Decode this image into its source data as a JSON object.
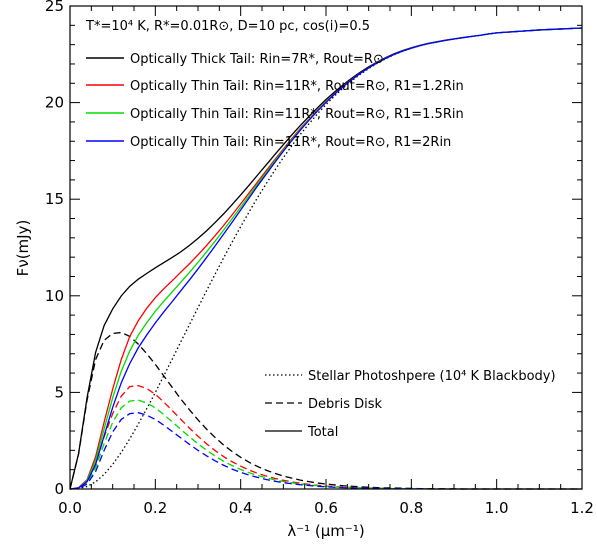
{
  "chart_data": {
    "type": "line",
    "xlabel": "λ⁻¹ (μm⁻¹)",
    "ylabel": "Fν(mJy)",
    "xlim": [
      0.0,
      1.2
    ],
    "ylim": [
      0,
      25
    ],
    "x_ticks": [
      "0.0",
      "0.2",
      "0.4",
      "0.6",
      "0.8",
      "1.0",
      "1.2"
    ],
    "y_ticks": [
      "0",
      "5",
      "10",
      "15",
      "20",
      "25"
    ],
    "params_text": "T*=10⁴ K, R*=0.01R⊙, D=10 pc, cos(i)=0.5",
    "legend_top": [
      {
        "label": "Optically Thick Tail: Rin=7R*, Rout=R⊙",
        "color": "#000000"
      },
      {
        "label": "Optically Thin Tail: Rin=11R*, Rout=R⊙, R1=1.2Rin",
        "color": "#ff0000"
      },
      {
        "label": "Optically Thin Tail: Rin=11R*, Rout=R⊙, R1=1.5Rin",
        "color": "#00dd00"
      },
      {
        "label": "Optically Thin Tail: Rin=11R*, Rout=R⊙, R1=2Rin",
        "color": "#0000ff"
      }
    ],
    "legend_styles": [
      {
        "label": "Stellar Photoshpere (10⁴ K Blackbody)",
        "dash": "dotted"
      },
      {
        "label": "Debris Disk",
        "dash": "dashed"
      },
      {
        "label": "Total",
        "dash": "solid"
      }
    ],
    "x": [
      0.0,
      0.02,
      0.04,
      0.06,
      0.08,
      0.1,
      0.12,
      0.14,
      0.16,
      0.18,
      0.2,
      0.22,
      0.24,
      0.26,
      0.28,
      0.3,
      0.32,
      0.34,
      0.36,
      0.38,
      0.4,
      0.42,
      0.44,
      0.46,
      0.48,
      0.5,
      0.52,
      0.54,
      0.56,
      0.58,
      0.6,
      0.62,
      0.64,
      0.66,
      0.68,
      0.7,
      0.72,
      0.74,
      0.76,
      0.78,
      0.8,
      0.82,
      0.84,
      0.86,
      0.88,
      0.9,
      0.92,
      0.94,
      0.96,
      0.98,
      1.0,
      1.02,
      1.04,
      1.06,
      1.08,
      1.1,
      1.12,
      1.14,
      1.16,
      1.18,
      1.2
    ],
    "series": [
      {
        "color": "#000000",
        "dash": "dotted",
        "values": [
          0.0,
          0.02,
          0.13,
          0.37,
          0.76,
          1.27,
          1.89,
          2.59,
          3.36,
          4.16,
          5.0,
          5.87,
          6.74,
          7.63,
          8.51,
          9.39,
          10.26,
          11.12,
          11.96,
          12.78,
          13.58,
          14.35,
          15.1,
          15.81,
          16.5,
          17.15,
          17.77,
          18.36,
          18.9,
          19.42,
          19.9,
          20.34,
          20.75,
          21.12,
          21.46,
          21.76,
          22.03,
          22.27,
          22.48,
          22.66,
          22.81,
          22.94,
          23.05,
          23.14,
          23.22,
          23.29,
          23.36,
          23.42,
          23.48,
          23.55,
          23.61,
          23.64,
          23.67,
          23.7,
          23.73,
          23.76,
          23.78,
          23.8,
          23.82,
          23.84,
          23.86
        ]
      },
      {
        "color": "#000000",
        "dash": "dashed",
        "values": [
          0.0,
          1.8,
          4.6,
          6.7,
          7.7,
          8.05,
          8.1,
          7.9,
          7.5,
          7.0,
          6.45,
          5.85,
          5.25,
          4.65,
          4.1,
          3.58,
          3.1,
          2.67,
          2.28,
          1.94,
          1.64,
          1.38,
          1.16,
          0.97,
          0.81,
          0.67,
          0.56,
          0.46,
          0.38,
          0.31,
          0.26,
          0.21,
          0.17,
          0.14,
          0.11,
          0.09,
          0.07,
          0.06,
          0.05,
          0.04,
          0.03,
          0.02,
          0.02,
          0.01,
          0.01,
          0.01,
          0.0,
          0.0,
          0.0,
          0.0,
          0.0,
          0.0,
          0.0,
          0.0,
          0.0,
          0.0,
          0.0,
          0.0,
          0.0,
          0.0,
          0.0
        ]
      },
      {
        "color": "#ff0000",
        "dash": "dashed",
        "values": [
          0.0,
          0.05,
          0.35,
          1.3,
          2.7,
          3.9,
          4.8,
          5.3,
          5.35,
          5.2,
          4.9,
          4.5,
          4.05,
          3.6,
          3.15,
          2.73,
          2.34,
          1.99,
          1.68,
          1.41,
          1.18,
          0.98,
          0.81,
          0.67,
          0.55,
          0.45,
          0.37,
          0.3,
          0.24,
          0.19,
          0.15,
          0.12,
          0.1,
          0.08,
          0.06,
          0.05,
          0.04,
          0.03,
          0.02,
          0.02,
          0.01,
          0.01,
          0.01,
          0.0,
          0.0,
          0.0,
          0.0,
          0.0,
          0.0,
          0.0,
          0.0,
          0.0,
          0.0,
          0.0,
          0.0,
          0.0,
          0.0,
          0.0,
          0.0,
          0.0,
          0.0
        ]
      },
      {
        "color": "#00dd00",
        "dash": "dashed",
        "values": [
          0.0,
          0.04,
          0.3,
          1.1,
          2.35,
          3.45,
          4.2,
          4.55,
          4.6,
          4.45,
          4.2,
          3.85,
          3.47,
          3.08,
          2.7,
          2.34,
          2.01,
          1.71,
          1.44,
          1.21,
          1.01,
          0.84,
          0.7,
          0.58,
          0.47,
          0.39,
          0.32,
          0.26,
          0.21,
          0.17,
          0.13,
          0.1,
          0.08,
          0.07,
          0.05,
          0.04,
          0.03,
          0.03,
          0.02,
          0.01,
          0.01,
          0.01,
          0.01,
          0.0,
          0.0,
          0.0,
          0.0,
          0.0,
          0.0,
          0.0,
          0.0,
          0.0,
          0.0,
          0.0,
          0.0,
          0.0,
          0.0,
          0.0,
          0.0,
          0.0,
          0.0
        ]
      },
      {
        "color": "#0000ff",
        "dash": "dashed",
        "values": [
          0.0,
          0.03,
          0.25,
          0.9,
          2.0,
          2.95,
          3.6,
          3.9,
          3.95,
          3.82,
          3.6,
          3.3,
          2.97,
          2.64,
          2.31,
          2.0,
          1.72,
          1.46,
          1.23,
          1.03,
          0.86,
          0.72,
          0.6,
          0.49,
          0.4,
          0.33,
          0.27,
          0.22,
          0.18,
          0.14,
          0.11,
          0.09,
          0.07,
          0.06,
          0.05,
          0.04,
          0.03,
          0.02,
          0.02,
          0.01,
          0.01,
          0.01,
          0.0,
          0.0,
          0.0,
          0.0,
          0.0,
          0.0,
          0.0,
          0.0,
          0.0,
          0.0,
          0.0,
          0.0,
          0.0,
          0.0,
          0.0,
          0.0,
          0.0,
          0.0,
          0.0
        ]
      },
      {
        "color": "#000000",
        "dash": "solid",
        "values": [
          0.0,
          1.82,
          4.73,
          7.07,
          8.46,
          9.32,
          9.99,
          10.49,
          10.86,
          11.16,
          11.45,
          11.72,
          11.99,
          12.28,
          12.61,
          12.97,
          13.36,
          13.79,
          14.24,
          14.72,
          15.22,
          15.73,
          16.26,
          16.78,
          17.31,
          17.82,
          18.33,
          18.82,
          19.28,
          19.73,
          20.16,
          20.55,
          20.92,
          21.26,
          21.57,
          21.85,
          22.1,
          22.33,
          22.53,
          22.7,
          22.84,
          22.96,
          23.07,
          23.15,
          23.23,
          23.3,
          23.36,
          23.42,
          23.48,
          23.55,
          23.61,
          23.64,
          23.67,
          23.7,
          23.73,
          23.76,
          23.78,
          23.8,
          23.82,
          23.84,
          23.86
        ]
      },
      {
        "color": "#ff0000",
        "dash": "solid",
        "values": [
          0.0,
          0.07,
          0.48,
          1.67,
          3.46,
          5.17,
          6.69,
          7.89,
          8.71,
          9.36,
          9.9,
          10.37,
          10.79,
          11.23,
          11.66,
          12.12,
          12.6,
          13.11,
          13.64,
          14.19,
          14.76,
          15.33,
          15.91,
          16.48,
          17.05,
          17.6,
          18.14,
          18.66,
          19.14,
          19.61,
          20.05,
          20.46,
          20.85,
          21.2,
          21.52,
          21.81,
          22.07,
          22.3,
          22.5,
          22.68,
          22.82,
          22.95,
          23.06,
          23.14,
          23.22,
          23.29,
          23.36,
          23.42,
          23.48,
          23.55,
          23.61,
          23.64,
          23.67,
          23.7,
          23.73,
          23.76,
          23.78,
          23.8,
          23.82,
          23.84,
          23.86
        ]
      },
      {
        "color": "#00dd00",
        "dash": "solid",
        "values": [
          0.0,
          0.06,
          0.43,
          1.47,
          3.11,
          4.72,
          6.09,
          7.14,
          7.96,
          8.61,
          9.2,
          9.72,
          10.21,
          10.71,
          11.21,
          11.73,
          12.27,
          12.83,
          13.4,
          13.99,
          14.59,
          15.19,
          15.8,
          16.39,
          16.97,
          17.54,
          18.09,
          18.62,
          19.11,
          19.59,
          20.03,
          20.44,
          20.83,
          21.19,
          21.51,
          21.8,
          22.06,
          22.3,
          22.5,
          22.67,
          22.82,
          22.95,
          23.06,
          23.14,
          23.22,
          23.29,
          23.36,
          23.42,
          23.48,
          23.55,
          23.61,
          23.64,
          23.67,
          23.7,
          23.73,
          23.76,
          23.78,
          23.8,
          23.82,
          23.84,
          23.86
        ]
      },
      {
        "color": "#0000ff",
        "dash": "solid",
        "values": [
          0.0,
          0.05,
          0.38,
          1.27,
          2.76,
          4.22,
          5.49,
          6.49,
          7.31,
          7.98,
          8.6,
          9.17,
          9.71,
          10.27,
          10.82,
          11.39,
          11.98,
          12.58,
          13.19,
          13.81,
          14.44,
          15.07,
          15.7,
          16.3,
          16.9,
          17.48,
          18.04,
          18.58,
          19.08,
          19.56,
          20.01,
          20.43,
          20.82,
          21.18,
          21.51,
          21.8,
          22.06,
          22.29,
          22.5,
          22.67,
          22.82,
          22.95,
          23.05,
          23.14,
          23.22,
          23.29,
          23.36,
          23.42,
          23.48,
          23.55,
          23.61,
          23.64,
          23.67,
          23.7,
          23.73,
          23.76,
          23.78,
          23.8,
          23.82,
          23.84,
          23.86
        ]
      }
    ]
  }
}
